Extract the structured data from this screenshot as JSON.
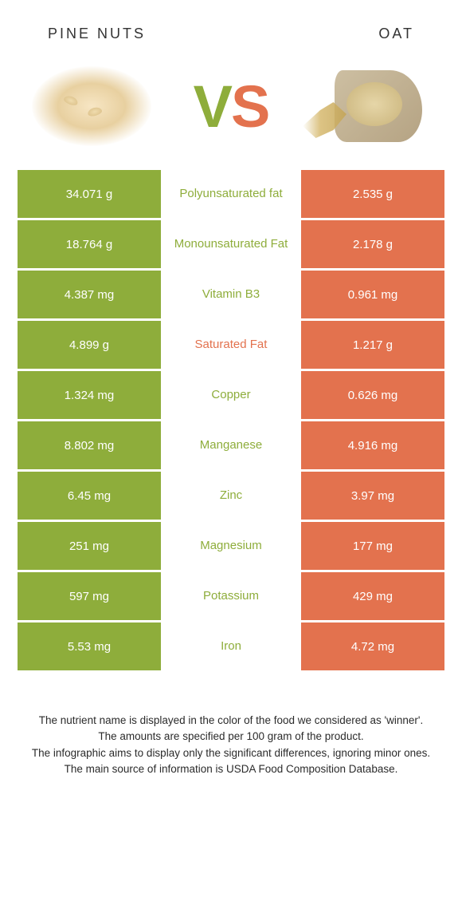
{
  "colors": {
    "left_bg": "#8ead3b",
    "right_bg": "#e3724e",
    "left_text": "#8ead3b",
    "right_text": "#e3724e",
    "body_text": "#2b2b2b",
    "white": "#ffffff"
  },
  "header": {
    "left_title": "PINE NUTS",
    "right_title": "OAT"
  },
  "vs": {
    "v": "V",
    "s": "S"
  },
  "rows": [
    {
      "left": "34.071 g",
      "label": "Polyunsaturated fat",
      "right": "2.535 g",
      "winner": "left"
    },
    {
      "left": "18.764 g",
      "label": "Monounsaturated Fat",
      "right": "2.178 g",
      "winner": "left"
    },
    {
      "left": "4.387 mg",
      "label": "Vitamin B3",
      "right": "0.961 mg",
      "winner": "left"
    },
    {
      "left": "4.899 g",
      "label": "Saturated Fat",
      "right": "1.217 g",
      "winner": "right"
    },
    {
      "left": "1.324 mg",
      "label": "Copper",
      "right": "0.626 mg",
      "winner": "left"
    },
    {
      "left": "8.802 mg",
      "label": "Manganese",
      "right": "4.916 mg",
      "winner": "left"
    },
    {
      "left": "6.45 mg",
      "label": "Zinc",
      "right": "3.97 mg",
      "winner": "left"
    },
    {
      "left": "251 mg",
      "label": "Magnesium",
      "right": "177 mg",
      "winner": "left"
    },
    {
      "left": "597 mg",
      "label": "Potassium",
      "right": "429 mg",
      "winner": "left"
    },
    {
      "left": "5.53 mg",
      "label": "Iron",
      "right": "4.72 mg",
      "winner": "left"
    }
  ],
  "footer": {
    "line1": "The nutrient name is displayed in the color of the food we considered as 'winner'.",
    "line2": "The amounts are specified per 100 gram of the product.",
    "line3": "The infographic aims to display only the significant differences, ignoring minor ones.",
    "line4": "The main source of information is USDA Food Composition Database."
  }
}
